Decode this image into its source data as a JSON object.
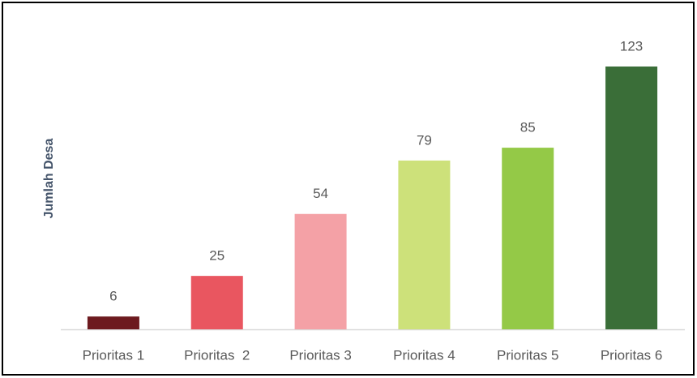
{
  "chart_data": {
    "type": "bar",
    "y_label": "Jumlah Desa",
    "categories": [
      "Prioritas 1",
      "Prioritas  2",
      "Prioritas 3",
      "Prioritas 4",
      "Prioritas 5",
      "Prioritas 6"
    ],
    "values": [
      6,
      25,
      54,
      79,
      85,
      123
    ],
    "colors": [
      "#6d1a1f",
      "#e95660",
      "#f4a1a6",
      "#cde17a",
      "#94c947",
      "#3a6e38"
    ]
  }
}
